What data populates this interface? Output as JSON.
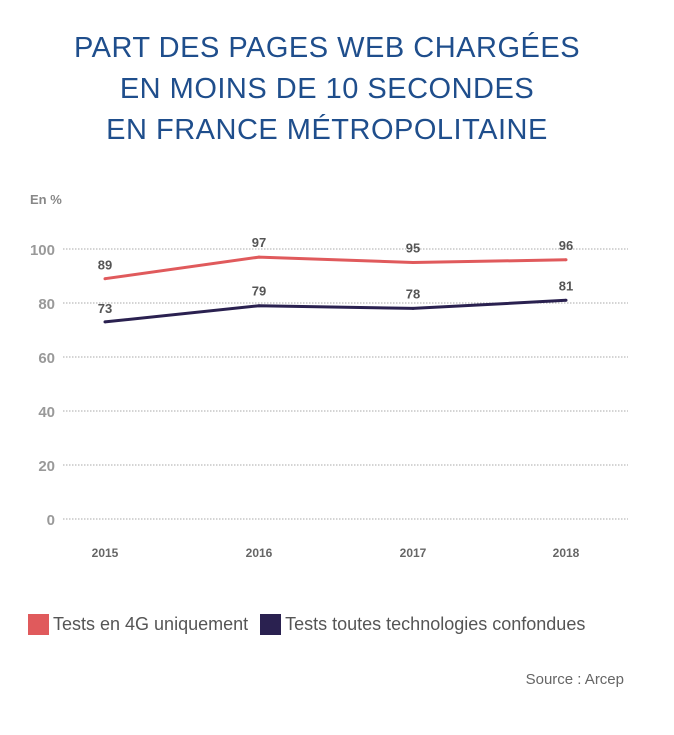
{
  "chart_data": {
    "type": "line",
    "title": [
      "PART DES PAGES WEB CHARGÉES",
      "EN MOINS DE 10 SECONDES",
      "EN FRANCE MÉTROPOLITAINE"
    ],
    "ylabel": "En %",
    "xlabel": "",
    "categories": [
      "2015",
      "2016",
      "2017",
      "2018"
    ],
    "ylim": [
      0,
      100
    ],
    "yticks": [
      0,
      20,
      40,
      60,
      80,
      100
    ],
    "grid": true,
    "legend_position": "bottom",
    "series": [
      {
        "name": "Tests en 4G uniquement",
        "values": [
          89,
          97,
          95,
          96
        ],
        "color": "#e05a5c"
      },
      {
        "name": "Tests toutes technologies confondues",
        "values": [
          73,
          79,
          78,
          81
        ],
        "color": "#2a2150"
      }
    ],
    "source": "Source : Arcep"
  }
}
